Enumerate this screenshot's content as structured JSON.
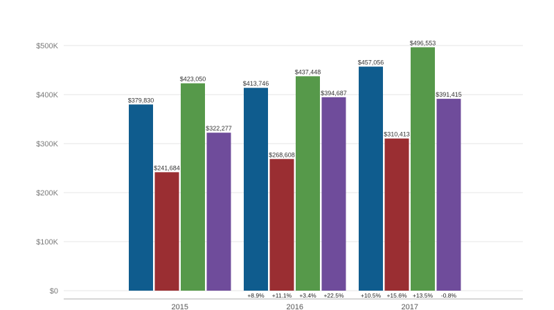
{
  "chart_data": {
    "type": "bar",
    "categories": [
      "2015",
      "2016",
      "2017"
    ],
    "series": [
      {
        "color": "#0f5c8e",
        "values": [
          379830,
          413746,
          457056
        ],
        "labels": [
          "$379,830",
          "$413,746",
          "$457,056"
        ],
        "changes": [
          "",
          "+8.9%",
          "+10.5%"
        ]
      },
      {
        "color": "#9a2e32",
        "values": [
          241684,
          268608,
          310413
        ],
        "labels": [
          "$241,684",
          "$268,608",
          "$310,413"
        ],
        "changes": [
          "",
          "+11.1%",
          "+15.6%"
        ]
      },
      {
        "color": "#56994a",
        "values": [
          423050,
          437448,
          496553
        ],
        "labels": [
          "$423,050",
          "$437,448",
          "$496,553"
        ],
        "changes": [
          "",
          "+3.4%",
          "+13.5%"
        ]
      },
      {
        "color": "#6f4c9b",
        "values": [
          322277,
          394687,
          391415
        ],
        "labels": [
          "$322,277",
          "$394,687",
          "$391,415"
        ],
        "changes": [
          "",
          "+22.5%",
          "-0.8%"
        ]
      }
    ],
    "yticks": [
      {
        "value": 0,
        "label": "$0"
      },
      {
        "value": 100000,
        "label": "$100K"
      },
      {
        "value": 200000,
        "label": "$200K"
      },
      {
        "value": 300000,
        "label": "$300K"
      },
      {
        "value": 400000,
        "label": "$400K"
      },
      {
        "value": 500000,
        "label": "$500K"
      }
    ],
    "ylim": [
      0,
      500000
    ],
    "grid": true,
    "legend": "none"
  }
}
